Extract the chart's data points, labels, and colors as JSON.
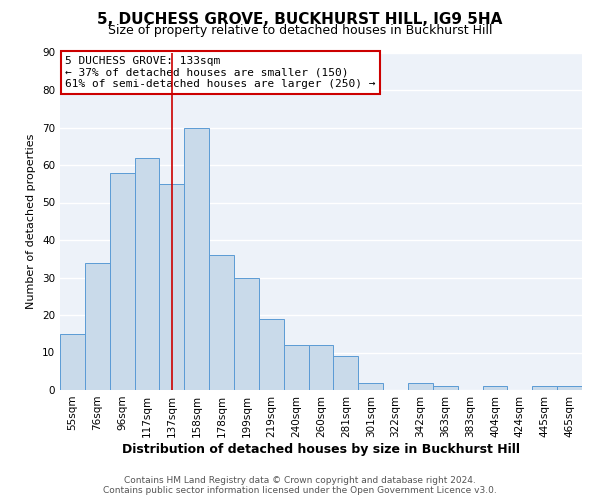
{
  "title": "5, DUCHESS GROVE, BUCKHURST HILL, IG9 5HA",
  "subtitle": "Size of property relative to detached houses in Buckhurst Hill",
  "xlabel": "Distribution of detached houses by size in Buckhurst Hill",
  "ylabel": "Number of detached properties",
  "bar_color": "#c9daea",
  "bar_edge_color": "#5b9bd5",
  "bg_color": "#edf2f9",
  "grid_color": "#ffffff",
  "categories": [
    "55sqm",
    "76sqm",
    "96sqm",
    "117sqm",
    "137sqm",
    "158sqm",
    "178sqm",
    "199sqm",
    "219sqm",
    "240sqm",
    "260sqm",
    "281sqm",
    "301sqm",
    "322sqm",
    "342sqm",
    "363sqm",
    "383sqm",
    "404sqm",
    "424sqm",
    "445sqm",
    "465sqm"
  ],
  "values": [
    15,
    34,
    58,
    62,
    55,
    70,
    36,
    30,
    19,
    12,
    12,
    9,
    2,
    0,
    2,
    1,
    0,
    1,
    0,
    1,
    1
  ],
  "ylim": [
    0,
    90
  ],
  "yticks": [
    0,
    10,
    20,
    30,
    40,
    50,
    60,
    70,
    80,
    90
  ],
  "vline_x": 4,
  "vline_color": "#cc0000",
  "annotation_title": "5 DUCHESS GROVE: 133sqm",
  "annotation_line1": "← 37% of detached houses are smaller (150)",
  "annotation_line2": "61% of semi-detached houses are larger (250) →",
  "annotation_box_color": "#cc0000",
  "footer1": "Contains HM Land Registry data © Crown copyright and database right 2024.",
  "footer2": "Contains public sector information licensed under the Open Government Licence v3.0.",
  "title_fontsize": 11,
  "subtitle_fontsize": 9,
  "xlabel_fontsize": 9,
  "ylabel_fontsize": 8,
  "tick_fontsize": 7.5,
  "annotation_fontsize": 8,
  "footer_fontsize": 6.5
}
